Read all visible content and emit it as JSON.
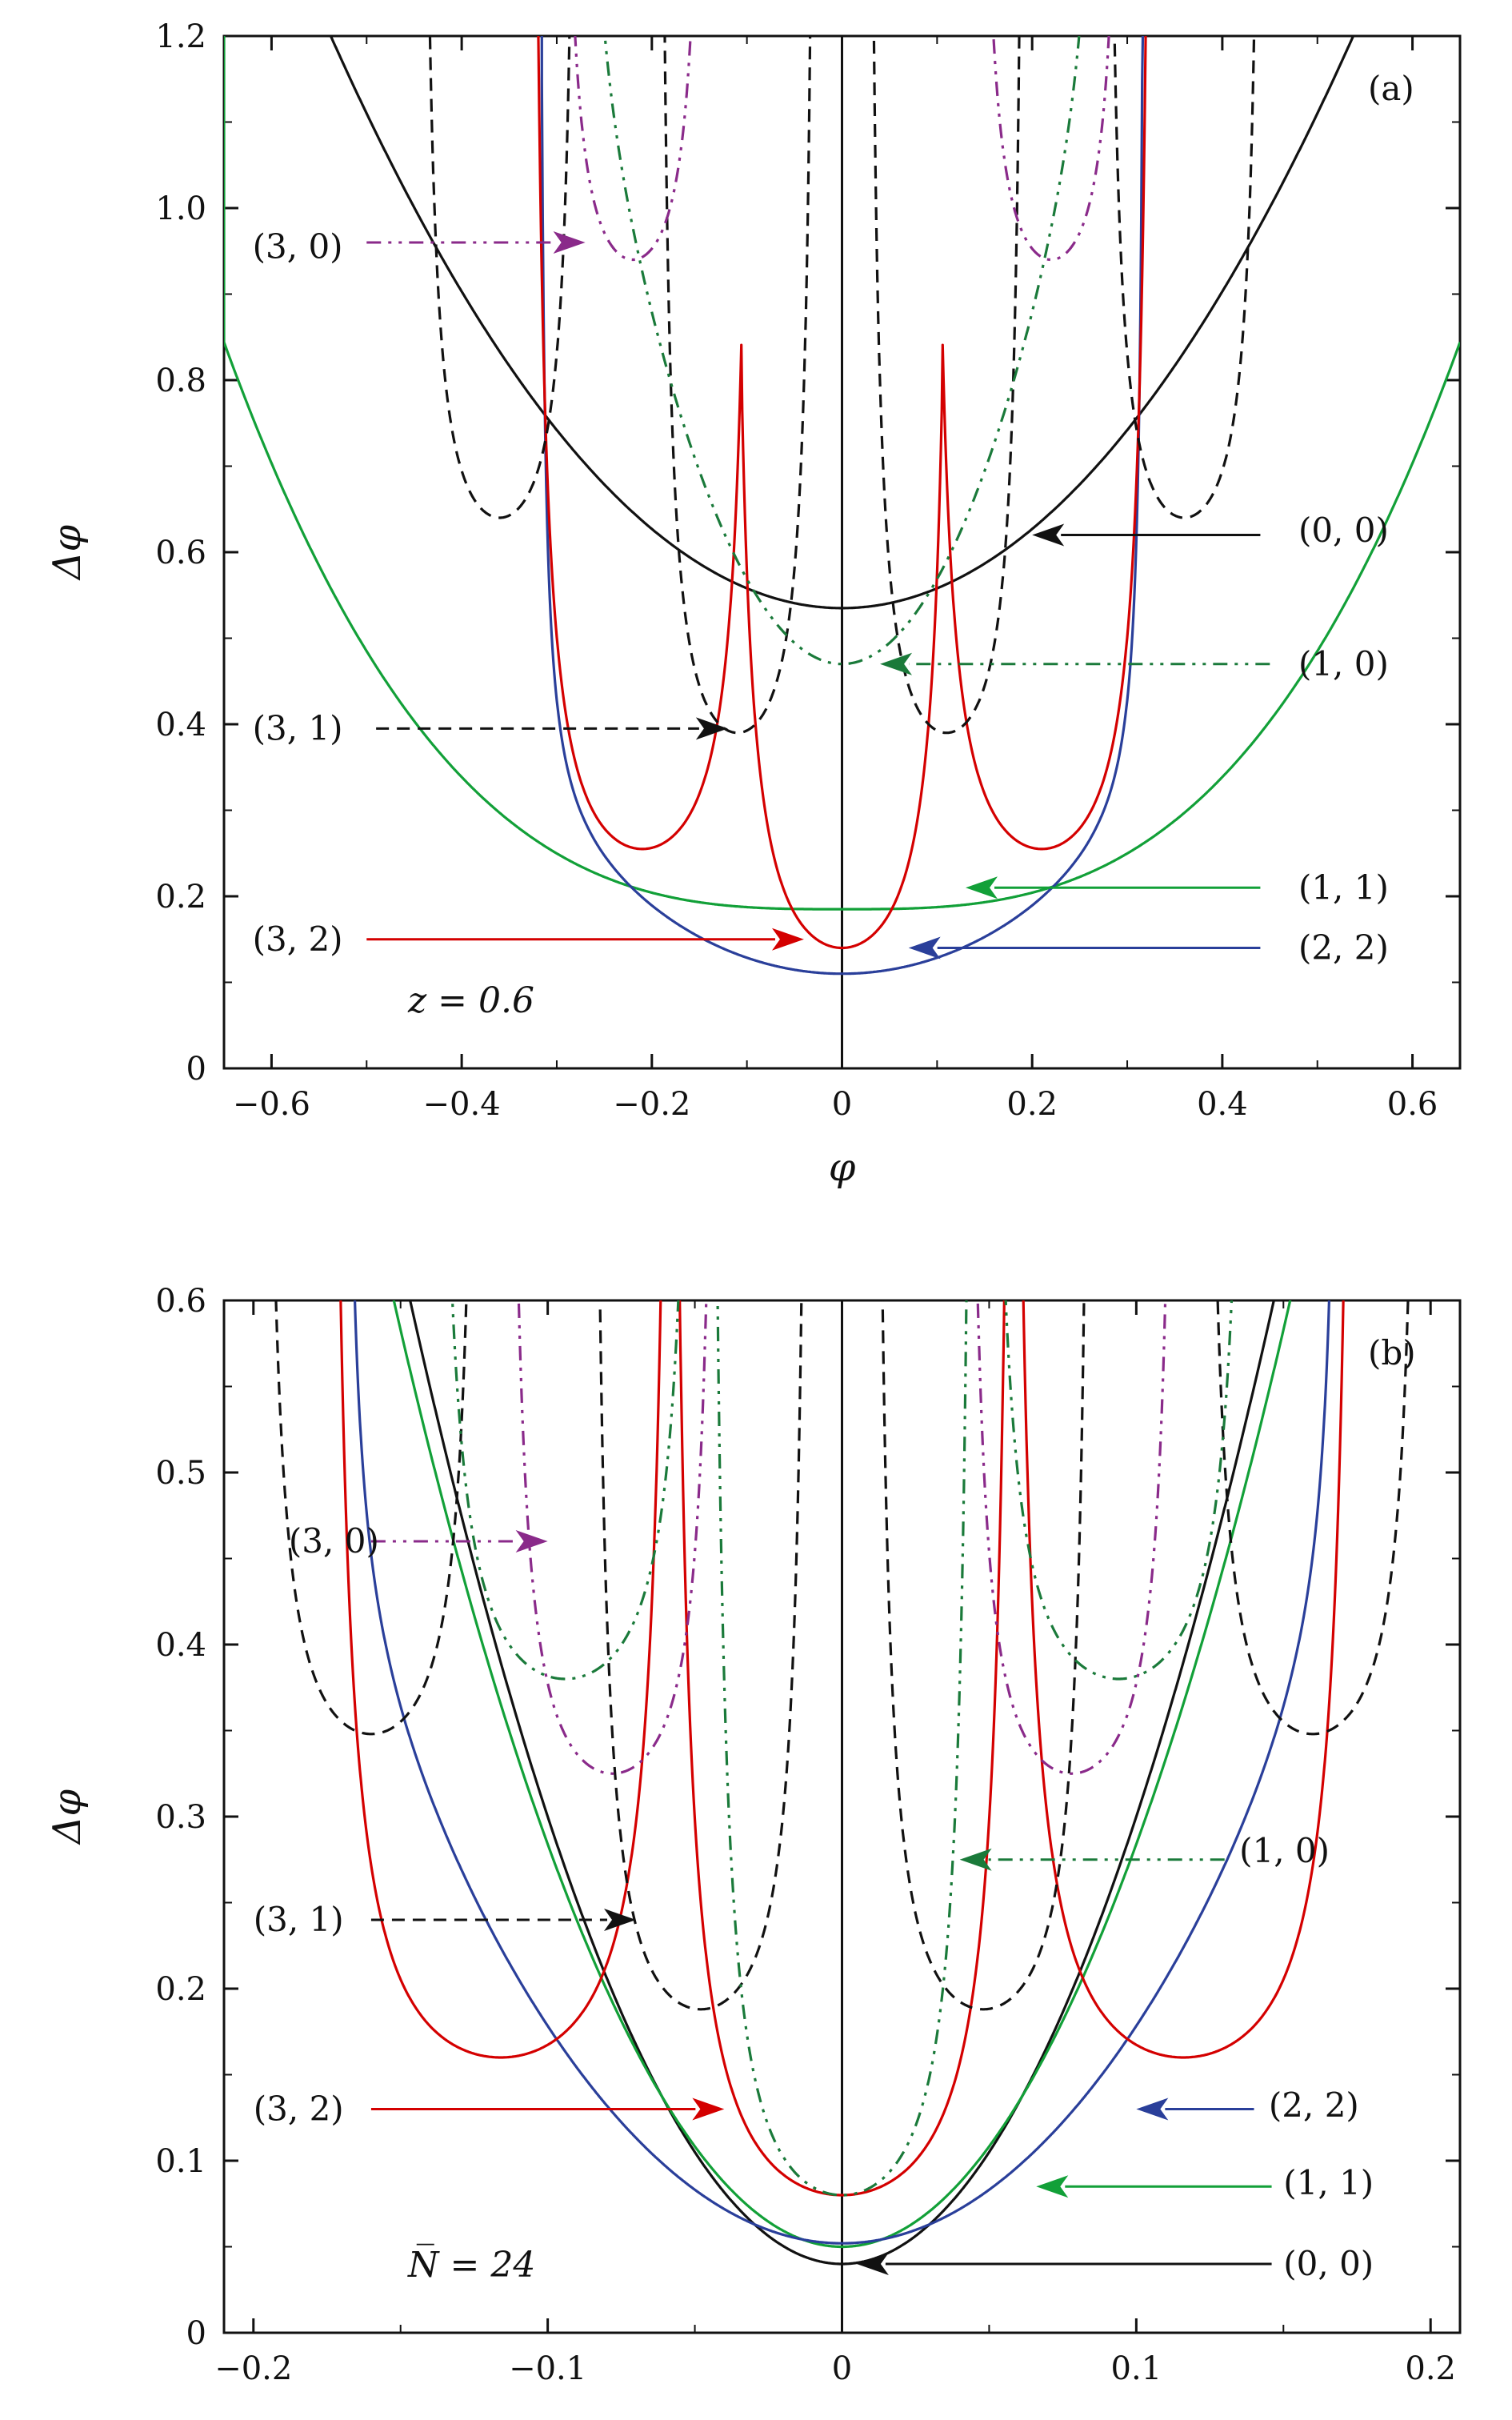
{
  "colors": {
    "black": "#111111",
    "red": "#d40000",
    "green": "#12a038",
    "darkgreen": "#1a7a3a",
    "blue": "#2a3f9a",
    "purple": "#8a2a8a"
  },
  "chart_data": [
    {
      "type": "line",
      "panel_label": "(a)",
      "parameter_text": "z = 0.6",
      "xlabel": "φ",
      "ylabel": "Δφ",
      "xlim": [
        -0.65,
        0.65
      ],
      "ylim": [
        0,
        1.2
      ],
      "xticks": [
        -0.6,
        -0.4,
        -0.2,
        0,
        0.2,
        0.4,
        0.6
      ],
      "xtick_labels": [
        "−0.6",
        "−0.4",
        "−0.2",
        "0",
        "0.2",
        "0.4",
        "0.6"
      ],
      "yticks": [
        0,
        0.2,
        0.4,
        0.6,
        0.8,
        1.0,
        1.2
      ],
      "ytick_labels": [
        "0",
        "0.2",
        "0.4",
        "0.6",
        "0.8",
        "1.0",
        "1.2"
      ],
      "vertical_line_x": 0,
      "series": [
        {
          "name": "(0,0)",
          "color": "black",
          "dash": "solid",
          "centers": [
            0
          ],
          "min": 0.535,
          "k": 2.3,
          "p": 2
        },
        {
          "name": "(1,1)",
          "color": "green",
          "dash": "solid",
          "centers": [
            0
          ],
          "min": 0.185,
          "k": 2.4,
          "p": 3
        },
        {
          "name": "(2,2)",
          "color": "blue",
          "dash": "solid",
          "centers": [
            0
          ],
          "min": 0.11,
          "k": 1.6,
          "p": 2,
          "pole": 0.32
        },
        {
          "name": "(3,2)",
          "color": "red",
          "dash": "solid",
          "centers": [
            -0.21,
            0,
            0.21
          ],
          "min": [
            0.255,
            0.14,
            0.255
          ],
          "pole": 0.12
        },
        {
          "name": "(3,1)",
          "color": "black",
          "dash": "dashed",
          "centers": [
            -0.36,
            -0.11,
            0.11,
            0.36
          ],
          "min": [
            0.64,
            0.39,
            0.39,
            0.64
          ],
          "pole": 0.085
        },
        {
          "name": "(1,0)",
          "color": "darkgreen",
          "dash": "dashdotdot",
          "centers": [
            0
          ],
          "min": 0.47,
          "k": 9.5,
          "p": 2,
          "pole": 0.27
        },
        {
          "name": "(3,0)",
          "color": "purple",
          "dash": "dashdotdot",
          "centers": [
            -0.22,
            0.22
          ],
          "min": [
            0.94,
            0.94
          ],
          "pole": 0.08
        }
      ],
      "annotations": [
        {
          "text": "(3, 0)",
          "color": "purple",
          "dash": "dashdotdot",
          "label_x": -0.62,
          "label_y": 0.955,
          "from_x": -0.5,
          "to_x": -0.27,
          "y": 0.96
        },
        {
          "text": "(0, 0)",
          "color": "black",
          "dash": "solid",
          "label_x": 0.48,
          "label_y": 0.625,
          "from_x": 0.44,
          "to_x": 0.2,
          "y": 0.62
        },
        {
          "text": "(1, 0)",
          "color": "darkgreen",
          "dash": "dashdotdot",
          "label_x": 0.48,
          "label_y": 0.47,
          "from_x": 0.45,
          "to_x": 0.04,
          "y": 0.47
        },
        {
          "text": "(3, 1)",
          "color": "black",
          "dash": "dashed",
          "label_x": -0.62,
          "label_y": 0.395,
          "from_x": -0.49,
          "to_x": -0.12,
          "y": 0.395
        },
        {
          "text": "(1, 1)",
          "color": "green",
          "dash": "solid",
          "label_x": 0.48,
          "label_y": 0.21,
          "from_x": 0.44,
          "to_x": 0.13,
          "y": 0.21
        },
        {
          "text": "(3, 2)",
          "color": "red",
          "dash": "solid",
          "label_x": -0.62,
          "label_y": 0.15,
          "from_x": -0.5,
          "to_x": -0.04,
          "y": 0.15
        },
        {
          "text": "(2, 2)",
          "color": "blue",
          "dash": "solid",
          "label_x": 0.48,
          "label_y": 0.14,
          "from_x": 0.44,
          "to_x": 0.07,
          "y": 0.14
        }
      ]
    },
    {
      "type": "line",
      "panel_label": "(b)",
      "parameter_text": "N̅ = 24",
      "xlabel": "φ",
      "ylabel": "Δφ",
      "xlim": [
        -0.21,
        0.21
      ],
      "ylim": [
        0,
        0.6
      ],
      "xticks": [
        -0.2,
        -0.1,
        0,
        0.1,
        0.2
      ],
      "xtick_labels": [
        "−0.2",
        "−0.1",
        "0",
        "0.1",
        "0.2"
      ],
      "yticks": [
        0,
        0.1,
        0.2,
        0.3,
        0.4,
        0.5,
        0.6
      ],
      "ytick_labels": [
        "0",
        "0.1",
        "0.2",
        "0.3",
        "0.4",
        "0.5",
        "0.6"
      ],
      "vertical_line_x": 0,
      "series": [
        {
          "name": "(0,0)",
          "color": "black",
          "dash": "solid",
          "centers": [
            0
          ],
          "min": 0.04,
          "k": 26,
          "p": 2
        },
        {
          "name": "(1,1)",
          "color": "green",
          "dash": "solid",
          "centers": [
            0
          ],
          "min": 0.05,
          "k": 23,
          "p": 2,
          "pole": 0.2
        },
        {
          "name": "(2,2)",
          "color": "blue",
          "dash": "solid",
          "centers": [
            0
          ],
          "min": 0.052,
          "k": 12,
          "p": 2,
          "pole": 0.17
        },
        {
          "name": "(3,2)",
          "color": "red",
          "dash": "solid",
          "centers": [
            -0.116,
            0,
            0.116
          ],
          "min": [
            0.16,
            0.08,
            0.16
          ],
          "pole": 0.06
        },
        {
          "name": "(3,1)",
          "color": "black",
          "dash": "dashed",
          "centers": [
            -0.16,
            -0.048,
            0.048,
            0.16
          ],
          "min": [
            0.348,
            0.188,
            0.188,
            0.348
          ],
          "pole": 0.038
        },
        {
          "name": "(1,0)",
          "color": "darkgreen",
          "dash": "dashdotdot",
          "centers": [
            -0.094,
            0,
            0.094
          ],
          "min": [
            0.38,
            0.08,
            0.38
          ],
          "pole": 0.046
        },
        {
          "name": "(3,0)",
          "color": "purple",
          "dash": "dashdotdot",
          "centers": [
            -0.078,
            0.078
          ],
          "min": [
            0.325,
            0.325
          ],
          "pole": 0.037
        }
      ],
      "annotations": [
        {
          "text": "(3, 0)",
          "color": "purple",
          "dash": "dashdotdot",
          "label_x": -0.188,
          "label_y": 0.46,
          "from_x": -0.16,
          "to_x": -0.1,
          "y": 0.46
        },
        {
          "text": "(1, 0)",
          "color": "darkgreen",
          "dash": "dashdotdot",
          "label_x": 0.135,
          "label_y": 0.28,
          "from_x": 0.13,
          "to_x": 0.04,
          "y": 0.275
        },
        {
          "text": "(3, 1)",
          "color": "black",
          "dash": "dashed",
          "label_x": -0.2,
          "label_y": 0.24,
          "from_x": -0.16,
          "to_x": -0.07,
          "y": 0.24
        },
        {
          "text": "(3, 2)",
          "color": "red",
          "dash": "solid",
          "label_x": -0.2,
          "label_y": 0.13,
          "from_x": -0.16,
          "to_x": -0.04,
          "y": 0.13
        },
        {
          "text": "(2, 2)",
          "color": "blue",
          "dash": "solid",
          "label_x": 0.145,
          "label_y": 0.132,
          "from_x": 0.14,
          "to_x": 0.1,
          "y": 0.13
        },
        {
          "text": "(1, 1)",
          "color": "green",
          "dash": "solid",
          "label_x": 0.15,
          "label_y": 0.087,
          "from_x": 0.146,
          "to_x": 0.066,
          "y": 0.085
        },
        {
          "text": "(0, 0)",
          "color": "black",
          "dash": "solid",
          "label_x": 0.15,
          "label_y": 0.04,
          "from_x": 0.146,
          "to_x": 0.005,
          "y": 0.04
        }
      ]
    }
  ]
}
